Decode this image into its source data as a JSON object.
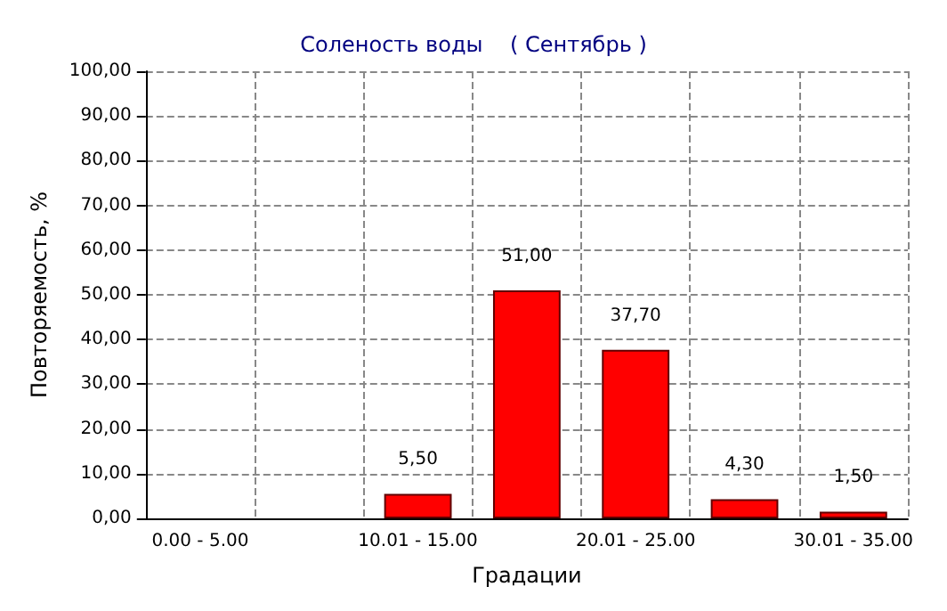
{
  "chart_data": {
    "type": "bar",
    "title": "Соленость воды    ( Сентябрь )",
    "xlabel": "Градации",
    "ylabel": "Повторяемость, %",
    "categories": [
      "0.00 - 5.00",
      null,
      "10.01 - 15.00",
      null,
      "20.01 - 25.00",
      null,
      "30.01 - 35.00"
    ],
    "values": [
      null,
      null,
      5.5,
      51,
      37.7,
      4.3,
      1.5
    ],
    "value_labels": [
      null,
      null,
      "5,50",
      "51,00",
      "37,70",
      "4,30",
      "1,50"
    ],
    "color": "#ff0000",
    "ylim": [
      0,
      100
    ],
    "yticks": [
      {
        "value": 0,
        "label": "0,00"
      },
      {
        "value": 10,
        "label": "10,00"
      },
      {
        "value": 20,
        "label": "20,00"
      },
      {
        "value": 30,
        "label": "30,00"
      },
      {
        "value": 40,
        "label": "40,00"
      },
      {
        "value": 50,
        "label": "50,00"
      },
      {
        "value": 60,
        "label": "60,00"
      },
      {
        "value": 70,
        "label": "70,00"
      },
      {
        "value": 80,
        "label": "80,00"
      },
      {
        "value": 90,
        "label": "90,00"
      },
      {
        "value": 100,
        "label": "100,00"
      }
    ],
    "grid": true
  }
}
